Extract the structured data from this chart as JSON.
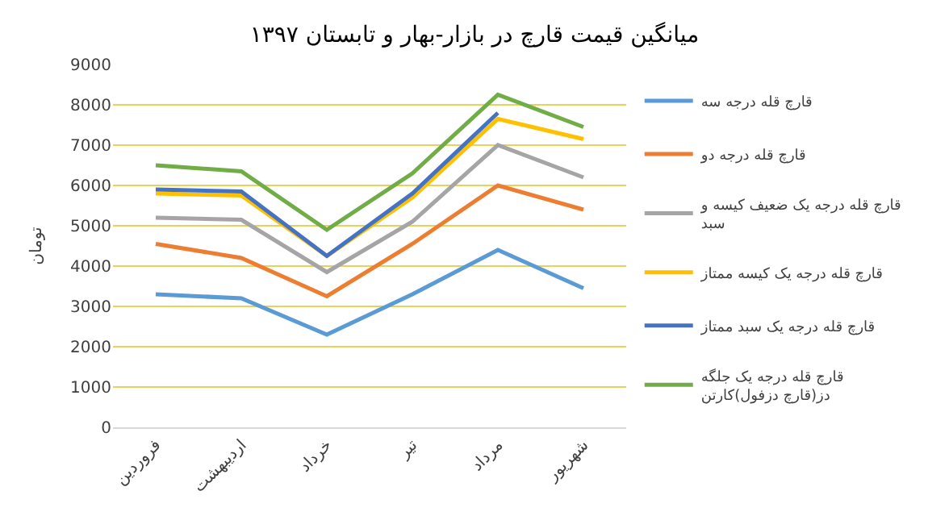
{
  "chart_data": {
    "type": "line",
    "title": "میانگین قیمت قارچ در بازار-بهار و تابستان ۱۳۹۷",
    "ylabel": "تومان",
    "categories": [
      "فروردین",
      "اردیبهشت",
      "خرداد",
      "تیر",
      "مرداد",
      "شهریور"
    ],
    "series": [
      {
        "name": "قارچ قله درجه سه",
        "color": "#5b9bd5",
        "values": [
          3300,
          3200,
          2300,
          3300,
          4400,
          3450
        ]
      },
      {
        "name": "قارچ قله درجه دو",
        "color": "#ed7d31",
        "values": [
          4550,
          4200,
          3250,
          4550,
          6000,
          5400
        ]
      },
      {
        "name": "قارچ قله درجه یک ضعیف کیسه و سبد",
        "color": "#a5a5a5",
        "values": [
          5200,
          5150,
          3850,
          5100,
          7000,
          6200
        ]
      },
      {
        "name": "قارچ قله درجه یک کیسه ممتاز",
        "color": "#ffc000",
        "values": [
          5800,
          5750,
          4250,
          5700,
          7650,
          7150
        ]
      },
      {
        "name": "قارچ قله درجه یک سبد ممتاز",
        "color": "#4472c4",
        "values": [
          5900,
          5850,
          4250,
          5800,
          7800,
          null
        ]
      },
      {
        "name": "قارچ قله درجه یک جلگه دز(قارچ دزفول)کارتن",
        "color": "#70ad47",
        "values": [
          6500,
          6350,
          4900,
          6300,
          8250,
          7450
        ]
      }
    ],
    "ylim": [
      0,
      9000
    ],
    "yticks": [
      0,
      1000,
      2000,
      3000,
      4000,
      5000,
      6000,
      7000,
      8000,
      9000
    ],
    "grid": "y",
    "legend": "right",
    "marker": "none",
    "line_style": "solid"
  }
}
